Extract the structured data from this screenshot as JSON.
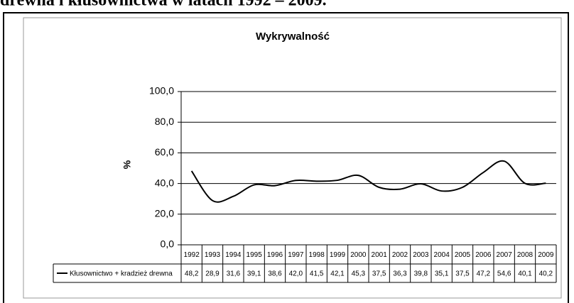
{
  "heading": "drewna i kłusownictwa w latach 1992 – 2009.",
  "chart_data": {
    "type": "line",
    "title": "Wykrywalność",
    "y_label": "%",
    "categories": [
      "1992",
      "1993",
      "1994",
      "1995",
      "1996",
      "1997",
      "1998",
      "1999",
      "2000",
      "2001",
      "2002",
      "2003",
      "2004",
      "2005",
      "2006",
      "2007",
      "2008",
      "2009"
    ],
    "series": [
      {
        "name": "Kłusownictwo + kradzież drewna",
        "color": "#000000",
        "values": [
          48.2,
          28.9,
          31.6,
          39.1,
          38.6,
          42.0,
          41.5,
          42.1,
          45.3,
          37.5,
          36.3,
          39.8,
          35.1,
          37.5,
          47.2,
          54.6,
          40.1,
          40.2
        ],
        "value_labels": [
          "48,2",
          "28,9",
          "31,6",
          "39,1",
          "38,6",
          "42,0",
          "41,5",
          "42,1",
          "45,3",
          "37,5",
          "36,3",
          "39,8",
          "35,1",
          "37,5",
          "47,2",
          "54,6",
          "40,1",
          "40,2"
        ]
      }
    ],
    "ylim": [
      0,
      100
    ],
    "yticks": [
      {
        "value": 0,
        "label": "0,0"
      },
      {
        "value": 20,
        "label": "20,0"
      },
      {
        "value": 40,
        "label": "40,0"
      },
      {
        "value": 60,
        "label": "60,0"
      },
      {
        "value": 80,
        "label": "80,0"
      },
      {
        "value": 100,
        "label": "100,0"
      }
    ],
    "grid": true
  }
}
